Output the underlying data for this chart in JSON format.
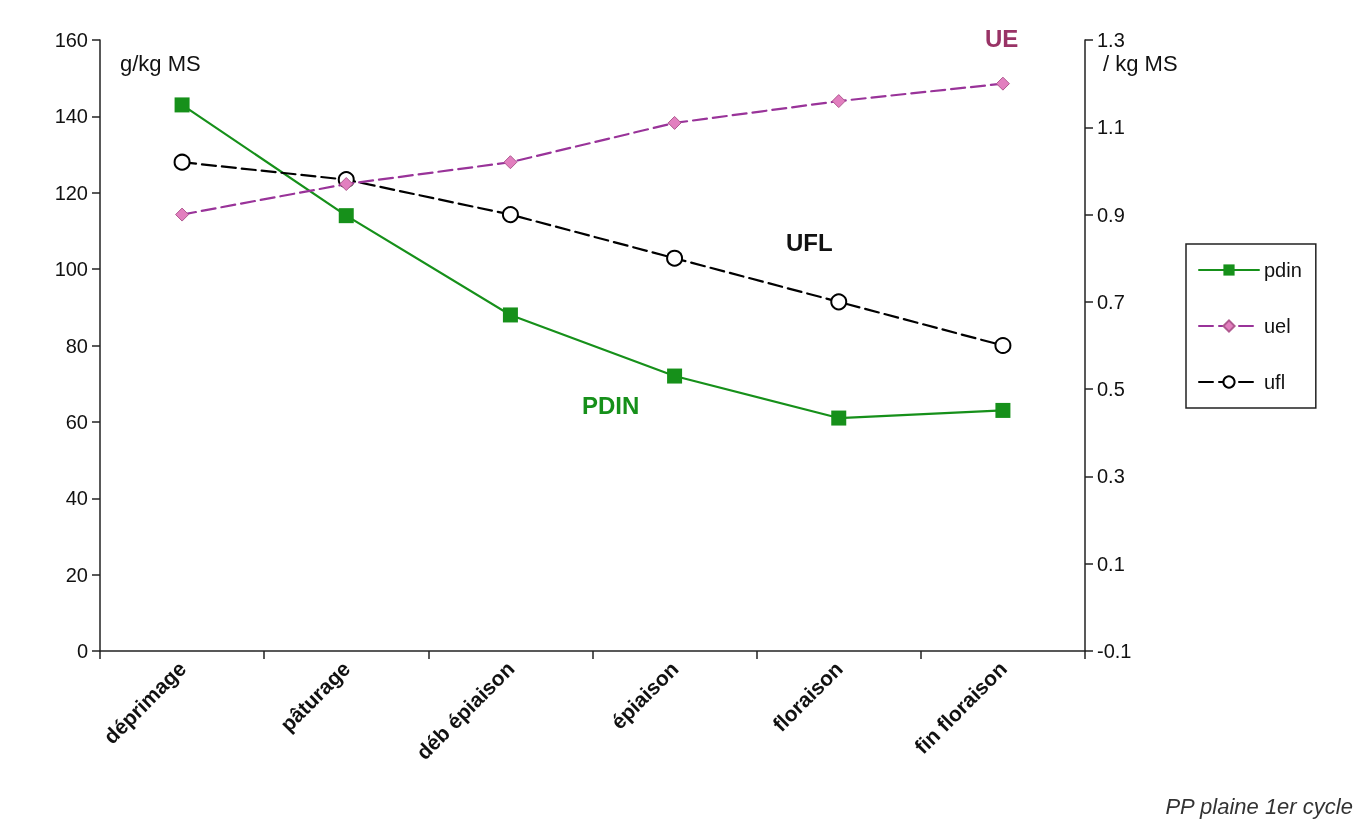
{
  "chart_data": {
    "type": "line",
    "ylabel": "g/kg MS",
    "y2label": "/ kg MS",
    "categories": [
      "déprimage",
      "pâturage",
      "déb épiaison",
      "épiaison",
      "floraison",
      "fin floraison"
    ],
    "series": [
      {
        "name": "pdin",
        "color": "#16901a",
        "values": [
          143,
          114,
          88,
          72,
          61,
          63
        ],
        "marker": "square",
        "line_style": "solid"
      },
      {
        "name": "uel",
        "color": "#993399",
        "values": [
          0.9,
          0.97,
          1.02,
          1.11,
          1.16,
          1.2
        ],
        "axis": "y2",
        "marker": "diamond",
        "line_style": "dashed"
      },
      {
        "name": "ufl",
        "color": "#000000",
        "values": [
          1.02,
          0.98,
          0.9,
          0.8,
          0.7,
          0.6
        ],
        "axis": "y2",
        "marker": "circle",
        "line_style": "dashed"
      }
    ],
    "ylim": [
      0,
      160
    ],
    "yticks": [
      0,
      20,
      40,
      60,
      80,
      100,
      120,
      140,
      160
    ],
    "y2lim": [
      -0.1,
      1.3
    ],
    "y2ticks": [
      -0.1,
      0.1,
      0.3,
      0.5,
      0.7,
      0.9,
      1.1,
      1.3
    ],
    "annotations": [
      "UE",
      "UFL",
      "PDIN",
      "PP plaine 1er cycle"
    ],
    "grid": false,
    "legend": "right"
  }
}
